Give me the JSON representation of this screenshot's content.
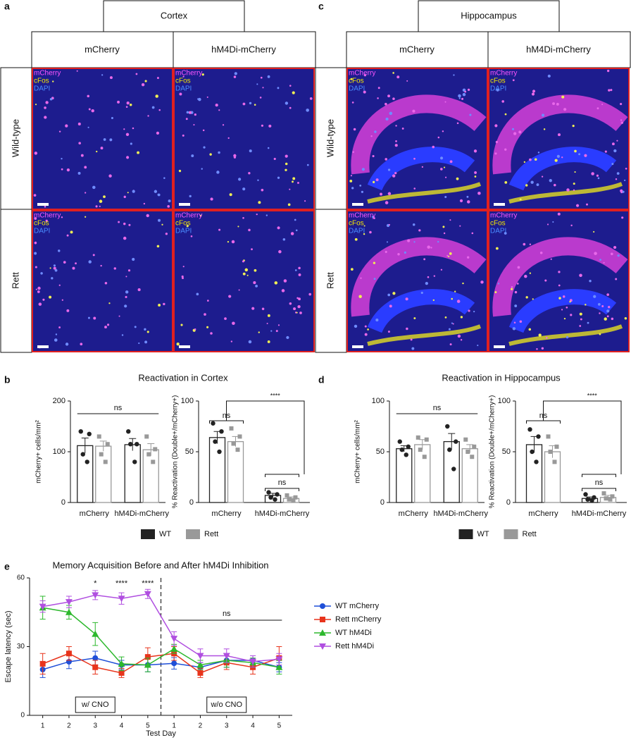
{
  "panel_labels": [
    "a",
    "b",
    "c",
    "d",
    "e"
  ],
  "micrographs": [
    {
      "region": "Cortex",
      "columns": [
        "mCherry",
        "hM4Di-mCherry"
      ],
      "rows": [
        "Wild-type",
        "Rett"
      ],
      "channels": [
        "mCherry",
        "cFos",
        "DAPI"
      ]
    },
    {
      "region": "Hippocampus",
      "columns": [
        "mCherry",
        "hM4Di-mCherry"
      ],
      "rows": [
        "Wild-type",
        "Rett"
      ],
      "channels": [
        "mCherry",
        "cFos",
        "DAPI"
      ]
    }
  ],
  "chart_data": [
    {
      "type": "bar",
      "title": "Reactivation in Cortex",
      "ylabel": "mCherry+ cells/mm²",
      "categories": [
        "mCherry",
        "hM4Di-mCherry"
      ],
      "ylim": [
        0,
        200
      ],
      "yticks": [
        0,
        100,
        200
      ],
      "series": [
        {
          "name": "WT",
          "color": "#222222",
          "values": [
            112,
            114
          ],
          "errors": [
            15,
            12
          ],
          "points": [
            [
              140,
              135,
              95,
              80
            ],
            [
              140,
              115,
              115,
              80
            ]
          ]
        },
        {
          "name": "Rett",
          "color": "#999999",
          "values": [
            111,
            104
          ],
          "errors": [
            10,
            12
          ],
          "points": [
            [
              130,
              115,
              95,
              80
            ],
            [
              130,
              105,
              95,
              80
            ]
          ]
        }
      ],
      "annotations": [
        "ns"
      ]
    },
    {
      "type": "bar",
      "ylabel": "% Reactivation (Double+/mCherry+)",
      "categories": [
        "mCherry",
        "hM4Di-mCherry"
      ],
      "ylim": [
        0,
        100
      ],
      "yticks": [
        0,
        50,
        100
      ],
      "series": [
        {
          "name": "WT",
          "color": "#222222",
          "values": [
            64,
            7
          ],
          "errors": [
            6,
            2
          ],
          "points": [
            [
              78,
              70,
              60,
              50
            ],
            [
              10,
              8,
              5,
              3
            ]
          ]
        },
        {
          "name": "Rett",
          "color": "#999999",
          "values": [
            60,
            4
          ],
          "errors": [
            5,
            1.5
          ],
          "points": [
            [
              73,
              65,
              58,
              52
            ],
            [
              7,
              5,
              3,
              2
            ]
          ]
        }
      ],
      "annotations": [
        "ns",
        "****",
        "ns"
      ]
    },
    {
      "type": "bar",
      "title": "Reactivation in Hippocampus",
      "ylabel": "mCherry+ cells/mm²",
      "categories": [
        "mCherry",
        "hM4Di-mCherry"
      ],
      "ylim": [
        0,
        100
      ],
      "yticks": [
        0,
        50,
        100
      ],
      "series": [
        {
          "name": "WT",
          "color": "#222222",
          "values": [
            53,
            60
          ],
          "errors": [
            3,
            8
          ],
          "points": [
            [
              60,
              55,
              52,
              47
            ],
            [
              75,
              60,
              52,
              33
            ]
          ]
        },
        {
          "name": "Rett",
          "color": "#999999",
          "values": [
            57,
            53
          ],
          "errors": [
            5,
            4
          ],
          "points": [
            [
              64,
              62,
              52,
              45
            ],
            [
              62,
              55,
              50,
              45
            ]
          ]
        }
      ],
      "annotations": [
        "ns"
      ]
    },
    {
      "type": "bar",
      "ylabel": "% Reactivation (Double+/mCherry+)",
      "categories": [
        "mCherry",
        "hM4Di-mCherry"
      ],
      "ylim": [
        0,
        100
      ],
      "yticks": [
        0,
        50,
        100
      ],
      "series": [
        {
          "name": "WT",
          "color": "#222222",
          "values": [
            57,
            4
          ],
          "errors": [
            8,
            1.5
          ],
          "points": [
            [
              72,
              65,
              50,
              40
            ],
            [
              8,
              5,
              3,
              2
            ]
          ]
        },
        {
          "name": "Rett",
          "color": "#999999",
          "values": [
            50,
            5
          ],
          "errors": [
            6,
            2
          ],
          "points": [
            [
              65,
              55,
              50,
              40
            ],
            [
              9,
              6,
              4,
              3
            ]
          ]
        }
      ],
      "annotations": [
        "ns",
        "****",
        "ns"
      ]
    },
    {
      "type": "line",
      "title": "Memory Acquisition Before and After hM4Di Inhibition",
      "xlabel": "Test Day",
      "ylabel": "Escape latency (sec)",
      "categories": [
        "1",
        "2",
        "3",
        "4",
        "5",
        "1",
        "2",
        "3",
        "4",
        "5"
      ],
      "ylim": [
        0,
        60
      ],
      "yticks": [
        0,
        30,
        60
      ],
      "series": [
        {
          "name": "WT mCherry",
          "color": "#1f4fd8",
          "marker": "circle",
          "values": [
            20,
            23.4,
            25,
            22,
            22,
            22.7,
            21,
            24,
            24,
            21
          ],
          "errors": [
            3.5,
            3,
            3,
            2,
            3,
            2.5,
            2,
            3,
            2,
            2
          ]
        },
        {
          "name": "Rett mCherry",
          "color": "#e8341c",
          "marker": "square",
          "values": [
            22.5,
            27,
            21,
            18.5,
            25.5,
            27,
            18.5,
            23,
            21,
            25
          ],
          "errors": [
            4.5,
            3,
            3,
            2,
            4,
            3,
            2,
            3,
            3,
            5
          ]
        },
        {
          "name": "WT hM4Di",
          "color": "#2db82d",
          "marker": "triangle-up",
          "values": [
            47,
            45,
            35.5,
            22.5,
            22,
            29,
            22,
            24,
            23,
            21
          ],
          "errors": [
            5,
            3,
            5,
            3,
            3,
            2,
            2,
            3,
            2,
            3
          ]
        },
        {
          "name": "Rett hM4Di",
          "color": "#b04fe0",
          "marker": "triangle-down",
          "values": [
            47.5,
            49.5,
            52.5,
            51,
            53,
            33.5,
            26,
            26,
            23.5,
            24.5
          ],
          "errors": [
            2.5,
            2.5,
            2,
            2.5,
            2,
            3,
            3,
            3,
            2.5,
            2.5
          ]
        }
      ],
      "annotations": [
        "*",
        "****",
        "****",
        "ns",
        "w/ CNO",
        "w/o CNO"
      ]
    }
  ]
}
